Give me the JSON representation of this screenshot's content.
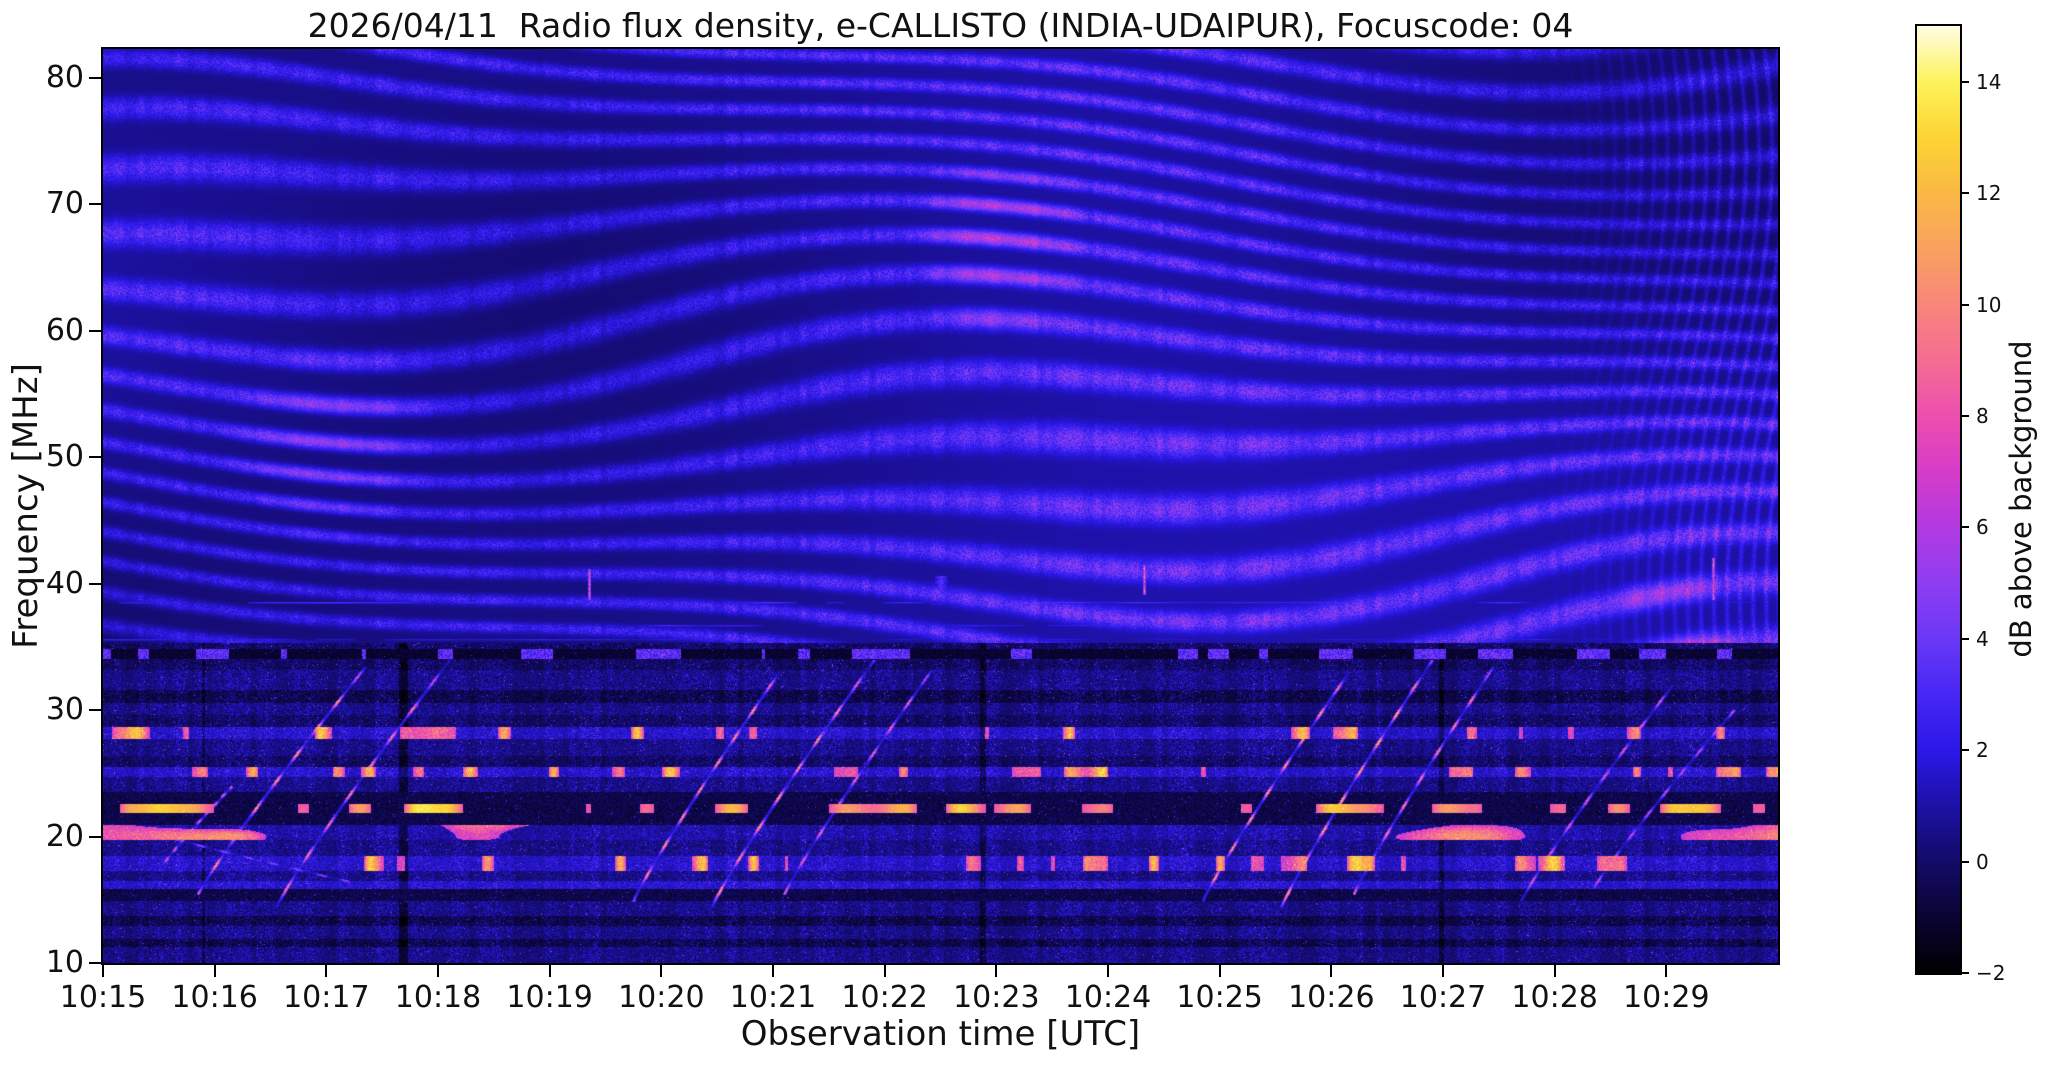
{
  "chart_data": {
    "type": "heatmap",
    "subtype": "radio-spectrogram",
    "title": "2026/04/11  Radio flux density, e-CALLISTO (INDIA-UDAIPUR), Focuscode: 04",
    "xlabel": "Observation time [UTC]",
    "ylabel": "Frequency [MHz]",
    "x_range_minutes": [
      0,
      15
    ],
    "x_start_label": "10:15",
    "x_ticks": [
      {
        "minute": 0,
        "label": "10:15"
      },
      {
        "minute": 1,
        "label": "10:16"
      },
      {
        "minute": 2,
        "label": "10:17"
      },
      {
        "minute": 3,
        "label": "10:18"
      },
      {
        "minute": 4,
        "label": "10:19"
      },
      {
        "minute": 5,
        "label": "10:20"
      },
      {
        "minute": 6,
        "label": "10:21"
      },
      {
        "minute": 7,
        "label": "10:22"
      },
      {
        "minute": 8,
        "label": "10:23"
      },
      {
        "minute": 9,
        "label": "10:24"
      },
      {
        "minute": 10,
        "label": "10:25"
      },
      {
        "minute": 11,
        "label": "10:26"
      },
      {
        "minute": 12,
        "label": "10:27"
      },
      {
        "minute": 13,
        "label": "10:28"
      },
      {
        "minute": 14,
        "label": "10:29"
      }
    ],
    "y_range_mhz": [
      10,
      82.3
    ],
    "y_ticks": [
      80,
      70,
      60,
      50,
      40,
      30,
      20,
      10
    ],
    "colorbar": {
      "label": "dB above background",
      "range": [
        -2,
        15
      ],
      "ticks": [
        14,
        12,
        10,
        8,
        6,
        4,
        2,
        0,
        -2
      ],
      "tick_labels": [
        "14",
        "12",
        "10",
        "8",
        "6",
        "4",
        "2",
        "0",
        "−2"
      ],
      "stops": [
        [
          -2,
          "#000000"
        ],
        [
          -1,
          "#0a0433"
        ],
        [
          0,
          "#130b68"
        ],
        [
          1,
          "#1d11a6"
        ],
        [
          2,
          "#2b18e8"
        ],
        [
          3,
          "#4727f4"
        ],
        [
          4,
          "#6b38f6"
        ],
        [
          5,
          "#8f3df2"
        ],
        [
          6,
          "#b23ae2"
        ],
        [
          7,
          "#d63cc9"
        ],
        [
          8,
          "#ec4fae"
        ],
        [
          9,
          "#f56d93"
        ],
        [
          10,
          "#f8867b"
        ],
        [
          11,
          "#f9a15f"
        ],
        [
          12,
          "#fab844"
        ],
        [
          13,
          "#fcd434"
        ],
        [
          14,
          "#fdf35b"
        ],
        [
          15,
          "#fffce3"
        ]
      ]
    },
    "features": {
      "description": "Dark-blue dynamic spectrum with wavy diagonal interference fringes above ~35 MHz (near-vertical at the right edge), a dashed dark lane at ~34.5 MHz, strong horizontal RFI lanes below 35 MHz (bright dashed lane at ~22 MHz), repeated slanted bright ionosonde sweeps rising from ~15 to ~34 MHz, and short bright vertical streaks near 40 MHz.",
      "fringes": {
        "min_freq_mhz": 35.3,
        "spacing_mhz": 3.05
      },
      "bands": [
        {
          "f_hi": 35.3,
          "f_lo": 34.85,
          "mode": "dim"
        },
        {
          "f_hi": 34.85,
          "f_lo": 34.05,
          "mode": "darkdash"
        },
        {
          "f_hi": 34.05,
          "f_lo": 33.2,
          "mode": "dim"
        },
        {
          "f_hi": 33.2,
          "f_lo": 31.6,
          "mode": "mid"
        },
        {
          "f_hi": 31.6,
          "f_lo": 30.6,
          "mode": "dim2"
        },
        {
          "f_hi": 30.6,
          "f_lo": 29.6,
          "mode": "mid"
        },
        {
          "f_hi": 29.6,
          "f_lo": 28.7,
          "mode": "dim"
        },
        {
          "f_hi": 28.7,
          "f_lo": 27.7,
          "mode": "vbright"
        },
        {
          "f_hi": 27.7,
          "f_lo": 26.4,
          "mode": "mid"
        },
        {
          "f_hi": 26.4,
          "f_lo": 25.5,
          "mode": "dim"
        },
        {
          "f_hi": 25.5,
          "f_lo": 24.7,
          "mode": "vbright"
        },
        {
          "f_hi": 24.7,
          "f_lo": 23.5,
          "mode": "mid"
        },
        {
          "f_hi": 23.5,
          "f_lo": 22.55,
          "mode": "dark"
        },
        {
          "f_hi": 22.55,
          "f_lo": 21.85,
          "mode": "dashes"
        },
        {
          "f_hi": 21.85,
          "f_lo": 20.9,
          "mode": "dark"
        },
        {
          "f_hi": 20.9,
          "f_lo": 19.7,
          "mode": "brightpatch"
        },
        {
          "f_hi": 19.7,
          "f_lo": 18.5,
          "mode": "mid"
        },
        {
          "f_hi": 18.5,
          "f_lo": 17.3,
          "mode": "vbright"
        },
        {
          "f_hi": 17.3,
          "f_lo": 16.5,
          "mode": "mid"
        },
        {
          "f_hi": 16.5,
          "f_lo": 15.85,
          "mode": "bright"
        },
        {
          "f_hi": 15.85,
          "f_lo": 14.9,
          "mode": "dark"
        },
        {
          "f_hi": 14.9,
          "f_lo": 13.7,
          "mode": "mid"
        },
        {
          "f_hi": 13.7,
          "f_lo": 12.9,
          "mode": "dim2"
        },
        {
          "f_hi": 12.9,
          "f_lo": 11.9,
          "mode": "mid"
        },
        {
          "f_hi": 11.9,
          "f_lo": 11.3,
          "mode": "dim2"
        },
        {
          "f_hi": 11.3,
          "f_lo": 10.0,
          "mode": "mid"
        }
      ],
      "streaks": [
        {
          "m0": 0.55,
          "f0": 18.0,
          "m1": 1.15,
          "f1": 24.0,
          "peak": 8
        },
        {
          "m0": 0.85,
          "f0": 15.5,
          "m1": 2.35,
          "f1": 33.5,
          "peak": 11
        },
        {
          "m0": 1.55,
          "f0": 14.5,
          "m1": 3.1,
          "f1": 34.0,
          "peak": 10
        },
        {
          "m0": 0.4,
          "f0": 20.5,
          "m1": 2.2,
          "f1": 16.5,
          "peak": 5
        },
        {
          "m0": 4.75,
          "f0": 15.0,
          "m1": 6.05,
          "f1": 33.0,
          "peak": 11
        },
        {
          "m0": 5.45,
          "f0": 14.5,
          "m1": 6.9,
          "f1": 34.0,
          "peak": 11
        },
        {
          "m0": 6.1,
          "f0": 15.5,
          "m1": 7.4,
          "f1": 33.0,
          "peak": 9
        },
        {
          "m0": 9.85,
          "f0": 15.0,
          "m1": 11.15,
          "f1": 33.0,
          "peak": 11
        },
        {
          "m0": 10.55,
          "f0": 14.5,
          "m1": 11.9,
          "f1": 34.0,
          "peak": 12
        },
        {
          "m0": 11.2,
          "f0": 15.5,
          "m1": 12.45,
          "f1": 33.5,
          "peak": 10
        },
        {
          "m0": 12.7,
          "f0": 15.0,
          "m1": 14.05,
          "f1": 32.0,
          "peak": 8
        },
        {
          "m0": 13.35,
          "f0": 16.0,
          "m1": 14.6,
          "f1": 30.0,
          "peak": 7
        }
      ],
      "spots": [
        {
          "m": 4.35,
          "f0": 38.8,
          "f1": 41.2,
          "peak": 10,
          "halfwidth": 1
        },
        {
          "m": 9.32,
          "f0": 39.2,
          "f1": 41.5,
          "peak": 11,
          "halfwidth": 1
        },
        {
          "m": 14.42,
          "f0": 38.8,
          "f1": 42.0,
          "peak": 10,
          "halfwidth": 1
        },
        {
          "m": 7.5,
          "f0": 39.2,
          "f1": 40.6,
          "peak": 4.5,
          "halfwidth": 6
        }
      ],
      "hlines": [
        {
          "f": 38.55,
          "m0": 0,
          "m1": 15,
          "level": 2.6
        },
        {
          "f": 36.7,
          "m0": 3.5,
          "m1": 10.5,
          "level": 2.2
        },
        {
          "f": 35.6,
          "m0": 0,
          "m1": 15,
          "level": 1.8
        }
      ]
    }
  }
}
